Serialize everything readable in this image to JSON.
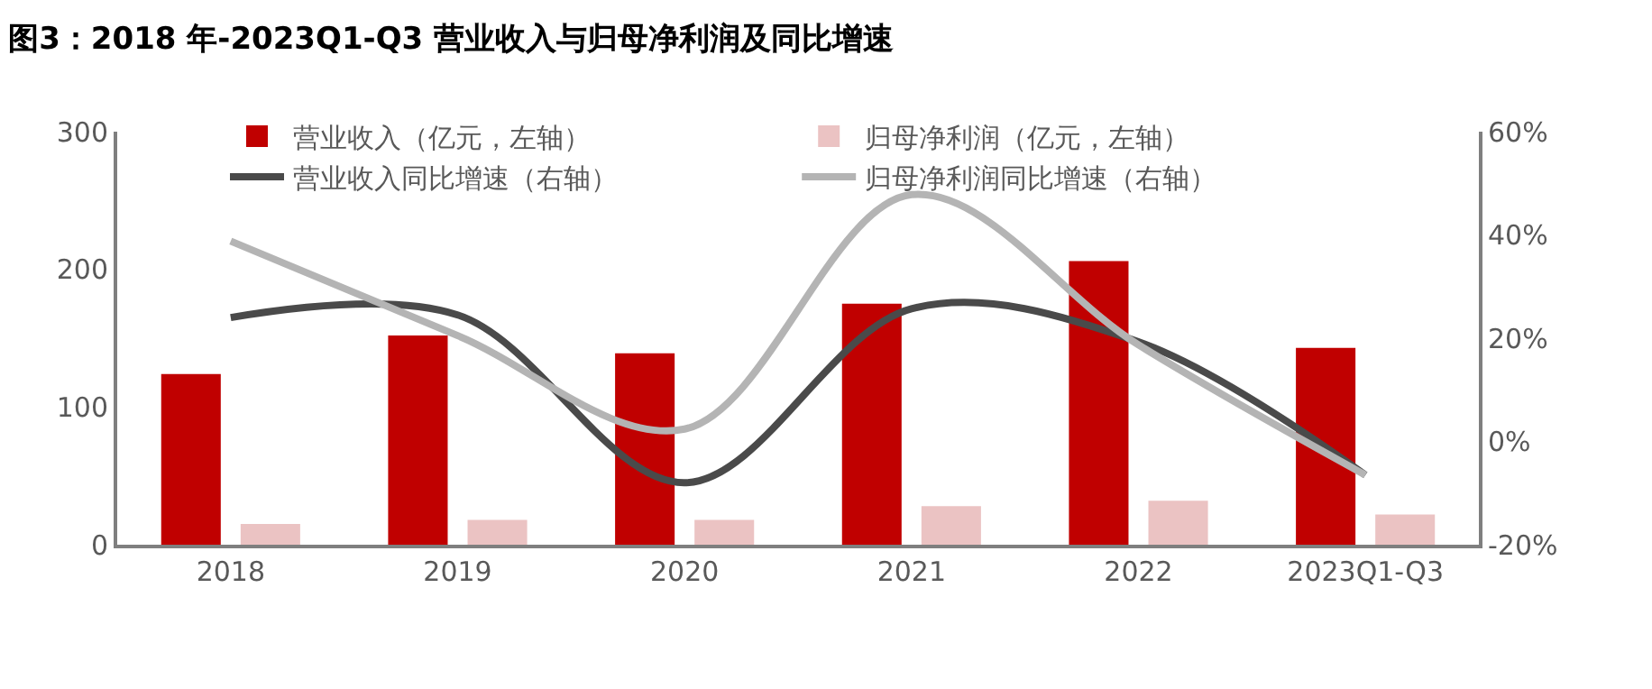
{
  "chart_data": {
    "type": "bar",
    "title": "图3：2018 年-2023Q1-Q3 营业收入与归母净利润及同比增速",
    "categories": [
      "2018",
      "2019",
      "2020",
      "2021",
      "2022",
      "2023Q1-Q3"
    ],
    "series": [
      {
        "name": "营业收入（亿元，左轴）",
        "color": "#c00000",
        "values": [
          124,
          152,
          139,
          175,
          206,
          143
        ]
      },
      {
        "name": "归母净利润（亿元，左轴）",
        "color": "#ebc3c3",
        "values": [
          15,
          18,
          18,
          28,
          32,
          22
        ]
      },
      {
        "name": "营业收入同比增速（右轴）",
        "type": "line",
        "axis": "y2",
        "color": "#4a4a4a",
        "values": [
          24,
          24.5,
          -8,
          25.7,
          19.3,
          -6.5
        ]
      },
      {
        "name": "归母净利润同比增速（右轴）",
        "type": "line",
        "axis": "y2",
        "color": "#b4b4b4",
        "values": [
          38.8,
          20.5,
          2.4,
          47.8,
          18.7,
          -6.5
        ]
      }
    ],
    "ylim": [
      0,
      300
    ],
    "yticks": [
      0,
      100,
      200,
      300
    ],
    "y2lim": [
      -20,
      60
    ],
    "y2ticks": [
      {
        "value": -20,
        "label": "-20%"
      },
      {
        "value": 0,
        "label": "0%"
      },
      {
        "value": 20,
        "label": "20%"
      },
      {
        "value": 40,
        "label": "40%"
      },
      {
        "value": 60,
        "label": "60%"
      }
    ],
    "grid": false,
    "legend": "top",
    "marker": "none",
    "line_style": "solid"
  }
}
